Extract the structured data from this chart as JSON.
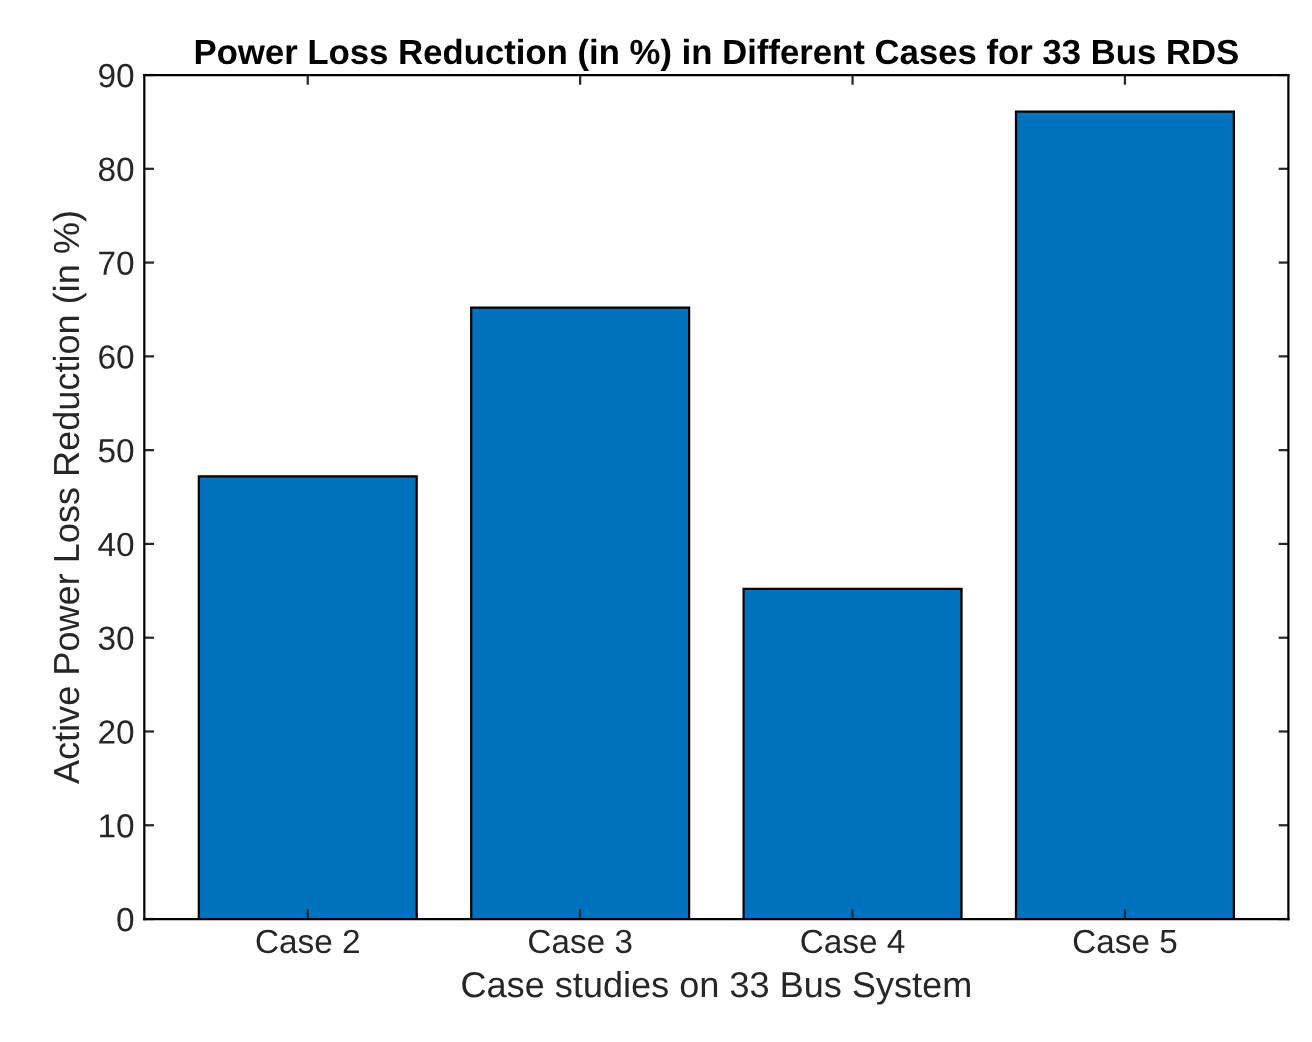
{
  "chart_data": {
    "type": "bar",
    "title": "Power Loss Reduction (in %) in Different Cases for 33 Bus RDS",
    "xlabel": "Case studies on 33 Bus System",
    "ylabel": "Active Power Loss Reduction (in %)",
    "categories": [
      "Case 2",
      "Case 3",
      "Case 4",
      "Case 5"
    ],
    "values": [
      47.2,
      65.2,
      35.2,
      86.1
    ],
    "color": "#0072bd",
    "ylim": [
      0,
      90
    ],
    "yticks": [
      0,
      10,
      20,
      30,
      40,
      50,
      60,
      70,
      80,
      90
    ],
    "grid": false
  }
}
